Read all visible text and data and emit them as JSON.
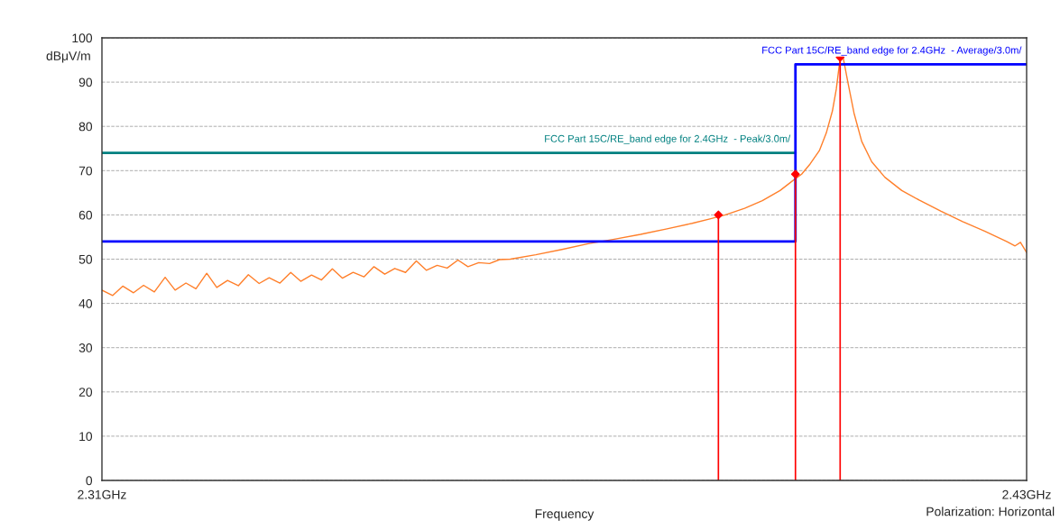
{
  "chart_data": {
    "type": "line",
    "xlabel": "Frequency",
    "ylabel": "dBμV/m",
    "xlim": [
      2.31,
      2.43
    ],
    "xticks": [
      {
        "value": 2.31,
        "label": "2.31GHz"
      },
      {
        "value": 2.43,
        "label": "2.43GHz"
      }
    ],
    "ylim": [
      0,
      100
    ],
    "yticks": [
      0,
      10,
      20,
      30,
      40,
      50,
      60,
      70,
      80,
      90,
      100
    ],
    "grid": "y",
    "legend": false,
    "line_style": "solid",
    "marker": "none",
    "annotations": [
      "Polarization: Horizontal"
    ],
    "series": [
      {
        "color": "#ff7f2a",
        "x": [
          2.31,
          2.3114,
          2.3127,
          2.3141,
          2.3154,
          2.3168,
          2.3182,
          2.3195,
          2.3209,
          2.3222,
          2.3236,
          2.3249,
          2.3263,
          2.3277,
          2.329,
          2.3304,
          2.3317,
          2.3331,
          2.3345,
          2.3358,
          2.3372,
          2.3385,
          2.3399,
          2.3412,
          2.3426,
          2.344,
          2.3453,
          2.3467,
          2.348,
          2.3494,
          2.3508,
          2.3521,
          2.3535,
          2.3548,
          2.3562,
          2.3575,
          2.3589,
          2.3603,
          2.3616,
          2.363,
          2.3663,
          2.3697,
          2.3731,
          2.3765,
          2.3799,
          2.3832,
          2.3866,
          2.3889,
          2.3909,
          2.3934,
          2.3957,
          2.398,
          2.3997,
          2.4008,
          2.4019,
          2.4031,
          2.404,
          2.4048,
          2.4053,
          2.4058,
          2.4062,
          2.4068,
          2.4076,
          2.4086,
          2.4099,
          2.4116,
          2.4138,
          2.4161,
          2.4189,
          2.4217,
          2.4246,
          2.4274,
          2.4285,
          2.4292,
          2.43
        ],
        "values": [
          43.0,
          41.8,
          43.9,
          42.4,
          44.1,
          42.6,
          45.9,
          43.0,
          44.6,
          43.3,
          46.8,
          43.6,
          45.2,
          44.0,
          46.5,
          44.5,
          45.8,
          44.6,
          47.0,
          45.0,
          46.4,
          45.3,
          47.8,
          45.7,
          47.0,
          46.0,
          48.3,
          46.6,
          47.9,
          47.0,
          49.6,
          47.5,
          48.6,
          48.0,
          49.8,
          48.3,
          49.2,
          49.0,
          49.9,
          50.0,
          51.0,
          52.2,
          53.5,
          54.5,
          55.6,
          56.8,
          58.1,
          59.1,
          60.0,
          61.5,
          63.2,
          65.5,
          67.8,
          69.2,
          71.5,
          74.5,
          78.5,
          83.5,
          88.4,
          95.4,
          95.5,
          90.0,
          83.0,
          76.6,
          72.0,
          68.5,
          65.5,
          63.3,
          60.8,
          58.5,
          56.3,
          54.0,
          53.0,
          53.8,
          51.5
        ]
      },
      {
        "type": "line",
        "name": "FCC Part 15C/RE_band edge for 2.4GHz  - Peak/3.0m/",
        "color": "#008080",
        "x": [
          2.31,
          2.4
        ],
        "values": [
          74,
          74
        ]
      },
      {
        "type": "step",
        "name": "FCC Part 15C/RE_band edge for 2.4GHz  - Average/3.0m/",
        "color": "#0000ff",
        "x": [
          2.31,
          2.4,
          2.43
        ],
        "values": [
          54,
          94,
          94
        ]
      },
      {
        "type": "lollipop",
        "color": "#ff0000",
        "marker": "diamond",
        "x": [
          2.39,
          2.4,
          2.4058
        ],
        "values": [
          60.0,
          69.2,
          95.6
        ]
      }
    ]
  }
}
